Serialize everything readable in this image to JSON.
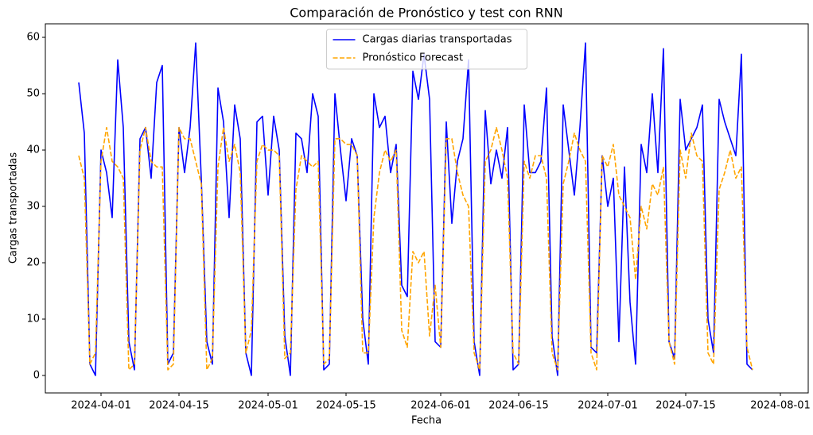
{
  "chart_data": {
    "type": "line",
    "title": "Comparación de Pronóstico y test con RNN",
    "xlabel": "Fecha",
    "ylabel": "Cargas transportadas",
    "x": [
      "2024-03-28",
      "2024-03-29",
      "2024-03-30",
      "2024-03-31",
      "2024-04-01",
      "2024-04-02",
      "2024-04-03",
      "2024-04-04",
      "2024-04-05",
      "2024-04-06",
      "2024-04-07",
      "2024-04-08",
      "2024-04-09",
      "2024-04-10",
      "2024-04-11",
      "2024-04-12",
      "2024-04-13",
      "2024-04-14",
      "2024-04-15",
      "2024-04-16",
      "2024-04-17",
      "2024-04-18",
      "2024-04-19",
      "2024-04-20",
      "2024-04-21",
      "2024-04-22",
      "2024-04-23",
      "2024-04-24",
      "2024-04-25",
      "2024-04-26",
      "2024-04-27",
      "2024-04-28",
      "2024-04-29",
      "2024-04-30",
      "2024-05-01",
      "2024-05-02",
      "2024-05-03",
      "2024-05-04",
      "2024-05-05",
      "2024-05-06",
      "2024-05-07",
      "2024-05-08",
      "2024-05-09",
      "2024-05-10",
      "2024-05-11",
      "2024-05-12",
      "2024-05-13",
      "2024-05-14",
      "2024-05-15",
      "2024-05-16",
      "2024-05-17",
      "2024-05-18",
      "2024-05-19",
      "2024-05-20",
      "2024-05-21",
      "2024-05-22",
      "2024-05-23",
      "2024-05-24",
      "2024-05-25",
      "2024-05-26",
      "2024-05-27",
      "2024-05-28",
      "2024-05-29",
      "2024-05-30",
      "2024-05-31",
      "2024-06-01",
      "2024-06-02",
      "2024-06-03",
      "2024-06-04",
      "2024-06-05",
      "2024-06-06",
      "2024-06-07",
      "2024-06-08",
      "2024-06-09",
      "2024-06-10",
      "2024-06-11",
      "2024-06-12",
      "2024-06-13",
      "2024-06-14",
      "2024-06-15",
      "2024-06-16",
      "2024-06-17",
      "2024-06-18",
      "2024-06-19",
      "2024-06-20",
      "2024-06-21",
      "2024-06-22",
      "2024-06-23",
      "2024-06-24",
      "2024-06-25",
      "2024-06-26",
      "2024-06-27",
      "2024-06-28",
      "2024-06-29",
      "2024-06-30",
      "2024-07-01",
      "2024-07-02",
      "2024-07-03",
      "2024-07-04",
      "2024-07-05",
      "2024-07-06",
      "2024-07-07",
      "2024-07-08",
      "2024-07-09",
      "2024-07-10",
      "2024-07-11",
      "2024-07-12",
      "2024-07-13",
      "2024-07-14",
      "2024-07-15",
      "2024-07-16",
      "2024-07-17",
      "2024-07-18",
      "2024-07-19",
      "2024-07-20",
      "2024-07-21",
      "2024-07-22",
      "2024-07-23",
      "2024-07-24",
      "2024-07-25",
      "2024-07-26",
      "2024-07-27"
    ],
    "series": [
      {
        "name": "Cargas diarias transportadas",
        "color": "#0000ff",
        "dashed": false,
        "values": [
          52,
          43,
          2,
          0,
          40,
          36,
          28,
          56,
          44,
          6,
          1,
          42,
          44,
          35,
          52,
          55,
          2,
          4,
          44,
          36,
          44,
          59,
          35,
          6,
          2,
          51,
          45,
          28,
          48,
          42,
          4,
          0,
          45,
          46,
          32,
          46,
          40,
          7,
          0,
          43,
          42,
          36,
          50,
          46,
          1,
          2,
          50,
          40,
          31,
          42,
          39,
          10,
          2,
          50,
          44,
          46,
          36,
          41,
          16,
          14,
          54,
          49,
          57,
          49,
          6,
          5,
          45,
          27,
          38,
          42,
          56,
          6,
          0,
          47,
          34,
          40,
          35,
          44,
          1,
          2,
          48,
          36,
          36,
          38,
          51,
          7,
          0,
          48,
          40,
          32,
          44,
          59,
          5,
          4,
          39,
          30,
          35,
          6,
          37,
          13,
          2,
          41,
          36,
          50,
          36,
          58,
          6,
          3,
          49,
          40,
          42,
          44,
          48,
          10,
          4,
          49,
          45,
          42,
          39,
          57,
          2,
          1
        ]
      },
      {
        "name": "Pronóstico Forecast",
        "color": "#ffa500",
        "dashed": true,
        "values": [
          39,
          35,
          2,
          4,
          38,
          44,
          38,
          37,
          35,
          1,
          2,
          40,
          44,
          38,
          37,
          37,
          1,
          2,
          44,
          42,
          42,
          38,
          34,
          1,
          3,
          37,
          44,
          38,
          41,
          36,
          4,
          8,
          38,
          41,
          40,
          40,
          39,
          3,
          4,
          33,
          39,
          38,
          37,
          38,
          2,
          3,
          42,
          42,
          41,
          41,
          39,
          4,
          4,
          28,
          36,
          40,
          38,
          40,
          8,
          5,
          22,
          20,
          22,
          7,
          16,
          5,
          42,
          42,
          36,
          32,
          30,
          4,
          1,
          38,
          40,
          44,
          40,
          35,
          4,
          2,
          38,
          35,
          39,
          39,
          35,
          4,
          1,
          34,
          38,
          43,
          40,
          38,
          4,
          1,
          39,
          37,
          41,
          32,
          30,
          28,
          17,
          30,
          26,
          34,
          32,
          37,
          6,
          2,
          40,
          35,
          43,
          39,
          38,
          4,
          2,
          33,
          36,
          40,
          35,
          37,
          5,
          1
        ]
      }
    ],
    "xlim": [
      "2024-03-22",
      "2024-08-06"
    ],
    "xticks": [
      "2024-04-01",
      "2024-04-15",
      "2024-05-01",
      "2024-05-15",
      "2024-06-01",
      "2024-06-15",
      "2024-07-01",
      "2024-07-15",
      "2024-08-01"
    ],
    "ylim": [
      -3.1,
      62.4
    ],
    "yticks": [
      0,
      10,
      20,
      30,
      40,
      50,
      60
    ],
    "grid": false,
    "legend": "upper center"
  }
}
